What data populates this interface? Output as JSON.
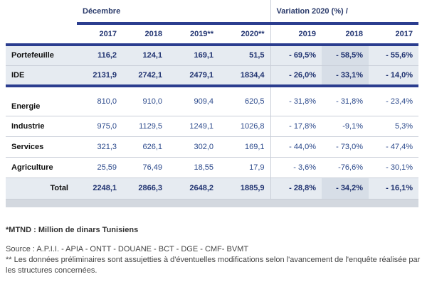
{
  "header": {
    "group_left": "Décembre",
    "group_right": "Variation 2020 (%) /",
    "years": [
      "2017",
      "2018",
      "2019**",
      "2020**",
      "2019",
      "2018",
      "2017"
    ]
  },
  "rows": [
    {
      "label": "Portefeuille",
      "values": [
        "116,2",
        "124,1",
        "169,1",
        "51,5",
        "- 69,5%",
        "- 58,5%",
        "- 55,6%"
      ]
    },
    {
      "label": "IDE",
      "values": [
        "2131,9",
        "2742,1",
        "2479,1",
        "1834,4",
        "- 26,0%",
        "- 33,1%",
        "- 14,0%"
      ]
    },
    {
      "label": "Energie",
      "values": [
        "810,0",
        "910,0",
        "909,4",
        "620,5",
        "- 31,8%",
        "- 31,8%",
        "- 23,4%"
      ]
    },
    {
      "label": "Industrie",
      "values": [
        "975,0",
        "1129,5",
        "1249,1",
        "1026,8",
        "- 17,8%",
        "-9,1%",
        "5,3%"
      ]
    },
    {
      "label": "Services",
      "values": [
        "321,3",
        "626,1",
        "302,0",
        "169,1",
        "- 44,0%",
        "- 73,0%",
        "- 47,4%"
      ]
    },
    {
      "label": "Agriculture",
      "values": [
        "25,59",
        "76,49",
        "18,55",
        "17,9",
        "- 3,6%",
        "-76,6%",
        "- 30,1%"
      ]
    },
    {
      "label": "Total",
      "values": [
        "2248,1",
        "2866,3",
        "2648,2",
        "1885,9",
        "- 28,8%",
        "- 34,2%",
        "- 16,1%"
      ]
    }
  ],
  "notes": {
    "unit": "*MTND : Million de dinars Tunisiens",
    "source": "Source : A.P.I.I. - APIA - ONTT - DOUANE - BCT - DGE - CMF- BVMT",
    "prelim": "** Les données préliminaires sont assujetties à d'éventuelles modifications selon l'avancement de l'enquête réalisée par les structures concernées."
  }
}
